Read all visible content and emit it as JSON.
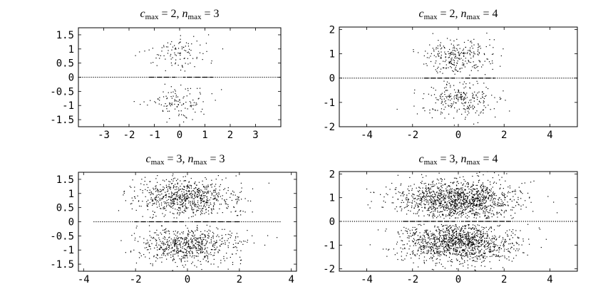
{
  "colors": {
    "points": "#000000",
    "background": "#ffffff",
    "frame": "#000000"
  },
  "chart_data": [
    {
      "type": "scatter",
      "title": {
        "c_sym": "c",
        "c_sub": "max",
        "c_val": "2",
        "n_sym": "n",
        "n_sub": "max",
        "n_val": "3"
      },
      "xlim": [
        -4,
        4
      ],
      "ylim": [
        -1.75,
        1.75
      ],
      "xticks": [
        -3,
        -2,
        -1,
        0,
        1,
        2,
        3
      ],
      "xtick_labels": [
        "-3",
        "-2",
        "-1",
        "0",
        "1",
        "2",
        "3"
      ],
      "yticks": [
        1.5,
        1,
        0.5,
        0,
        -0.5,
        -1,
        -1.5
      ],
      "ytick_labels": [
        "1.5",
        "1",
        "0.5",
        "0",
        "-0.5",
        "-1",
        "-1.5"
      ],
      "grid": false,
      "legend": "none",
      "series": [
        {
          "density": "sparse",
          "axis_line_x": [
            -4,
            4
          ],
          "axis_dash_x": [
            -1.3,
            1.3
          ],
          "spread_x": 0.6,
          "spread_y": 0.5,
          "center_y": 0.85,
          "count": 220
        }
      ]
    },
    {
      "type": "scatter",
      "title": {
        "c_sym": "c",
        "c_sub": "max",
        "c_val": "2",
        "n_sym": "n",
        "n_sub": "max",
        "n_val": "4"
      },
      "xlim": [
        -5.2,
        5.2
      ],
      "ylim": [
        -2,
        2.1
      ],
      "xticks": [
        -4,
        -2,
        0,
        2,
        4
      ],
      "xtick_labels": [
        "-4",
        "-2",
        "0",
        "2",
        "4"
      ],
      "yticks": [
        2,
        1,
        0,
        -1,
        -2
      ],
      "ytick_labels": [
        "2",
        "1",
        "0",
        "-1",
        "-2"
      ],
      "grid": false,
      "legend": "none",
      "series": [
        {
          "density": "medium",
          "axis_line_x": [
            -5.2,
            5.2
          ],
          "axis_dash_x": [
            -1.6,
            1.6
          ],
          "spread_x": 0.8,
          "spread_y": 0.65,
          "center_y": 0.9,
          "count": 520
        }
      ]
    },
    {
      "type": "scatter",
      "title": {
        "c_sym": "c",
        "c_sub": "max",
        "c_val": "3",
        "n_sym": "n",
        "n_sub": "max",
        "n_val": "3"
      },
      "xlim": [
        -4.2,
        4.2
      ],
      "ylim": [
        -1.75,
        1.75
      ],
      "xticks": [
        -4,
        -2,
        0,
        2,
        4
      ],
      "xtick_labels": [
        "-4",
        "-2",
        "0",
        "2",
        "4"
      ],
      "yticks": [
        1.5,
        1,
        0.5,
        0,
        -0.5,
        -1,
        -1.5
      ],
      "ytick_labels": [
        "1.5",
        "1",
        "0.5",
        "0",
        "-0.5",
        "-1",
        "-1.5"
      ],
      "grid": false,
      "legend": "none",
      "series": [
        {
          "density": "dense",
          "axis_line_x": [
            -3.6,
            3.6
          ],
          "axis_dash_x": [
            -2.0,
            2.0
          ],
          "spread_x": 1.0,
          "spread_y": 0.6,
          "center_y": 0.85,
          "count": 1400
        }
      ]
    },
    {
      "type": "scatter",
      "title": {
        "c_sym": "c",
        "c_sub": "max",
        "c_val": "3",
        "n_sym": "n",
        "n_sub": "max",
        "n_val": "4"
      },
      "xlim": [
        -5.2,
        5.2
      ],
      "ylim": [
        -2.1,
        2.1
      ],
      "xticks": [
        -4,
        -2,
        0,
        2,
        4
      ],
      "xtick_labels": [
        "-4",
        "-2",
        "0",
        "2",
        "4"
      ],
      "yticks": [
        2,
        1,
        0,
        -1,
        -2
      ],
      "ytick_labels": [
        "2",
        "1",
        "0",
        "-1",
        "-2"
      ],
      "grid": false,
      "legend": "none",
      "series": [
        {
          "density": "very dense",
          "axis_line_x": [
            -5.0,
            5.0
          ],
          "axis_dash_x": [
            -2.4,
            2.4
          ],
          "spread_x": 1.25,
          "spread_y": 0.75,
          "center_y": 0.9,
          "count": 2600
        }
      ]
    }
  ]
}
